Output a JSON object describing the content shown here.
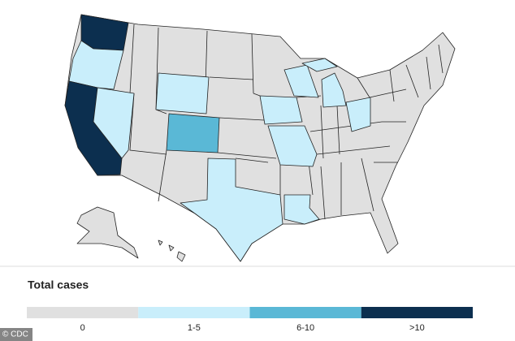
{
  "legend": {
    "title": "Total cases",
    "items": [
      {
        "label": "0",
        "color": "#e0e0e0"
      },
      {
        "label": "1-5",
        "color": "#c9eefb"
      },
      {
        "label": "6-10",
        "color": "#5ab8d6"
      },
      {
        "label": ">10",
        "color": "#0c2f4f"
      }
    ]
  },
  "credit": "© CDC"
}
